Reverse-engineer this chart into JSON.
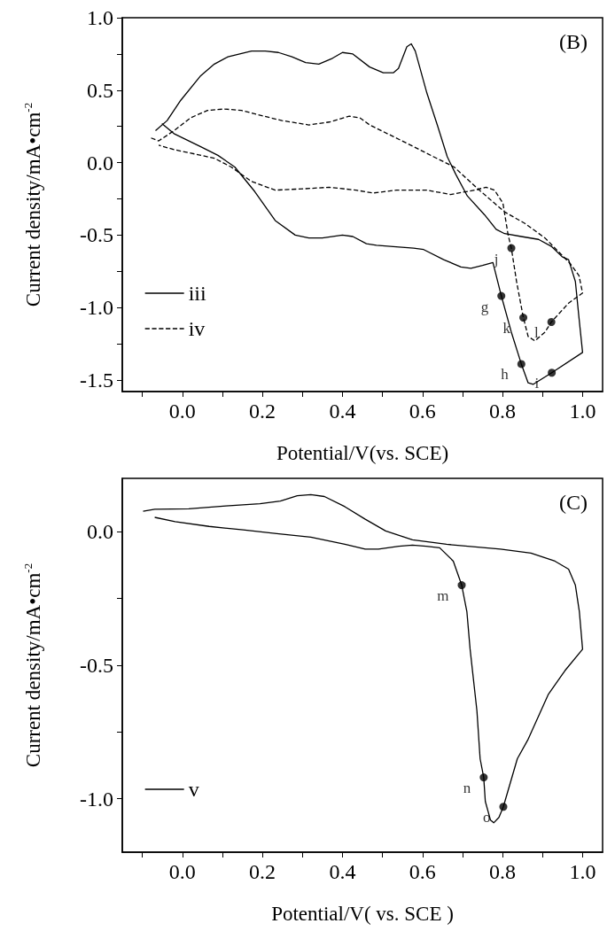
{
  "chart_data": [
    {
      "type": "line",
      "title": "(B)",
      "xlabel": "Potential/V(vs. SCE)",
      "ylabel": "Current density/mA•cm$^{-2}$",
      "xlim": [
        -0.15,
        1.05
      ],
      "ylim": [
        -1.58,
        1.0
      ],
      "xticks": [
        {
          "value": -0.1,
          "label": null
        },
        {
          "value": 0,
          "label": "0.0"
        },
        {
          "value": 0.1,
          "label": null
        },
        {
          "value": 0.2,
          "label": "0.2"
        },
        {
          "value": 0.3,
          "label": null
        },
        {
          "value": 0.4,
          "label": "0.4"
        },
        {
          "value": 0.5,
          "label": null
        },
        {
          "value": 0.6,
          "label": "0.6"
        },
        {
          "value": 0.7,
          "label": null
        },
        {
          "value": 0.8,
          "label": "0.8"
        },
        {
          "value": 0.9,
          "label": null
        },
        {
          "value": 1,
          "label": "1.0"
        }
      ],
      "yticks": [
        {
          "value": -1.5,
          "label": "-1.5"
        },
        {
          "value": -1.25,
          "label": null
        },
        {
          "value": -1,
          "label": "-1.0"
        },
        {
          "value": -0.75,
          "label": null
        },
        {
          "value": -0.5,
          "label": "-0.5"
        },
        {
          "value": -0.25,
          "label": null
        },
        {
          "value": 0,
          "label": "0.0"
        },
        {
          "value": 0.25,
          "label": null
        },
        {
          "value": 0.5,
          "label": "0.5"
        },
        {
          "value": 0.75,
          "label": null
        },
        {
          "value": 1,
          "label": "1.0"
        }
      ],
      "grid": false,
      "legend": "bottom left",
      "marker": "none",
      "series": [
        {
          "name": "iii",
          "color": "#000000",
          "line_style": "solid",
          "x": [
            -0.067,
            -0.038,
            -0.004,
            0.046,
            0.08,
            0.114,
            0.173,
            0.207,
            0.24,
            0.274,
            0.308,
            0.341,
            0.375,
            0.4,
            0.426,
            0.468,
            0.502,
            0.527,
            0.54,
            0.561,
            0.572,
            0.582,
            0.611,
            0.637,
            0.662,
            0.683,
            0.712,
            0.755,
            0.784,
            0.805,
            0.847,
            0.89,
            0.923,
            0.949,
            0.965,
            0.982,
            0.991,
            1.0,
            0.923,
            0.877,
            0.864,
            0.847,
            0.822,
            0.797,
            0.776,
            0.75,
            0.721,
            0.696,
            0.653,
            0.603,
            0.578,
            0.527,
            0.485,
            0.46,
            0.426,
            0.4,
            0.35,
            0.316,
            0.282,
            0.232,
            0.181,
            0.131,
            0.089,
            0.046,
            -0.021,
            -0.051
          ],
          "values": [
            0.22,
            0.29,
            0.43,
            0.6,
            0.68,
            0.73,
            0.77,
            0.77,
            0.76,
            0.73,
            0.69,
            0.68,
            0.72,
            0.76,
            0.75,
            0.66,
            0.62,
            0.62,
            0.65,
            0.8,
            0.82,
            0.77,
            0.48,
            0.26,
            0.04,
            -0.08,
            -0.23,
            -0.36,
            -0.46,
            -0.49,
            -0.51,
            -0.53,
            -0.58,
            -0.65,
            -0.67,
            -0.82,
            -1.07,
            -1.31,
            -1.45,
            -1.53,
            -1.52,
            -1.39,
            -1.17,
            -0.92,
            -0.69,
            -0.71,
            -0.73,
            -0.72,
            -0.67,
            -0.6,
            -0.59,
            -0.58,
            -0.57,
            -0.56,
            -0.51,
            -0.5,
            -0.52,
            -0.52,
            -0.5,
            -0.4,
            -0.2,
            -0.03,
            0.05,
            0.11,
            0.2,
            0.27
          ]
        },
        {
          "name": "iv",
          "color": "#000000",
          "line_style": "dashed",
          "x": [
            -0.078,
            -0.059,
            -0.021,
            0.021,
            0.063,
            0.105,
            0.148,
            0.19,
            0.249,
            0.316,
            0.367,
            0.417,
            0.443,
            0.468,
            0.527,
            0.578,
            0.628,
            0.679,
            0.738,
            0.805,
            0.856,
            0.906,
            0.949,
            0.97,
            0.991,
            1.0,
            0.965,
            0.922,
            0.906,
            0.881,
            0.864,
            0.852,
            0.835,
            0.822,
            0.814,
            0.801,
            0.78,
            0.759,
            0.73,
            0.67,
            0.611,
            0.535,
            0.476,
            0.434,
            0.367,
            0.308,
            0.232,
            0.173,
            0.122,
            0.08,
            0.03,
            -0.021,
            -0.059
          ],
          "values": [
            0.17,
            0.15,
            0.22,
            0.31,
            0.36,
            0.37,
            0.36,
            0.33,
            0.29,
            0.26,
            0.28,
            0.32,
            0.31,
            0.26,
            0.18,
            0.11,
            0.04,
            -0.03,
            -0.18,
            -0.34,
            -0.42,
            -0.52,
            -0.64,
            -0.7,
            -0.78,
            -0.9,
            -0.97,
            -1.1,
            -1.17,
            -1.23,
            -1.2,
            -1.07,
            -0.82,
            -0.59,
            -0.5,
            -0.28,
            -0.19,
            -0.17,
            -0.19,
            -0.22,
            -0.19,
            -0.19,
            -0.21,
            -0.19,
            -0.17,
            -0.18,
            -0.19,
            -0.13,
            -0.03,
            0.03,
            0.06,
            0.09,
            0.12
          ]
        }
      ],
      "annotations": [
        {
          "text": "g",
          "x": 0.797,
          "y": -0.92
        },
        {
          "text": "h",
          "x": 0.847,
          "y": -1.39
        },
        {
          "text": "i",
          "x": 0.923,
          "y": -1.45
        },
        {
          "text": "j",
          "x": 0.822,
          "y": -0.59
        },
        {
          "text": "k",
          "x": 0.852,
          "y": -1.07
        },
        {
          "text": "l",
          "x": 0.922,
          "y": -1.1
        }
      ]
    },
    {
      "type": "line",
      "title": "(C)",
      "xlabel": "Potential/V( vs. SCE )",
      "ylabel": "Current density/mA•cm$^{-2}$",
      "xlim": [
        -0.15,
        1.05
      ],
      "ylim": [
        -1.2,
        0.2
      ],
      "xticks": [
        {
          "value": -0.1,
          "label": null
        },
        {
          "value": 0,
          "label": "0.0"
        },
        {
          "value": 0.1,
          "label": null
        },
        {
          "value": 0.2,
          "label": "0.2"
        },
        {
          "value": 0.3,
          "label": null
        },
        {
          "value": 0.4,
          "label": "0.4"
        },
        {
          "value": 0.5,
          "label": null
        },
        {
          "value": 0.6,
          "label": "0.6"
        },
        {
          "value": 0.7,
          "label": null
        },
        {
          "value": 0.8,
          "label": "0.8"
        },
        {
          "value": 0.9,
          "label": null
        },
        {
          "value": 1,
          "label": "1.0"
        }
      ],
      "yticks": [
        {
          "value": -1,
          "label": "-1.0"
        },
        {
          "value": -0.75,
          "label": null
        },
        {
          "value": -0.5,
          "label": "-0.5"
        },
        {
          "value": -0.25,
          "label": null
        },
        {
          "value": 0,
          "label": "0.0"
        }
      ],
      "grid": false,
      "legend": "bottom left",
      "marker": "none",
      "series": [
        {
          "name": "v",
          "color": "#000000",
          "line_style": "solid",
          "x": [
            -0.098,
            -0.069,
            0.016,
            0.109,
            0.194,
            0.245,
            0.287,
            0.321,
            0.355,
            0.406,
            0.457,
            0.508,
            0.575,
            0.66,
            0.795,
            0.871,
            0.931,
            0.965,
            0.982,
            0.992,
            1.0,
            0.956,
            0.914,
            0.863,
            0.837,
            0.802,
            0.791,
            0.778,
            0.77,
            0.757,
            0.753,
            0.744,
            0.736,
            0.719,
            0.711,
            0.698,
            0.677,
            0.643,
            0.609,
            0.575,
            0.541,
            0.49,
            0.457,
            0.406,
            0.321,
            0.236,
            0.152,
            0.067,
            -0.018,
            -0.069
          ],
          "values": [
            0.077,
            0.084,
            0.086,
            0.097,
            0.105,
            0.115,
            0.135,
            0.139,
            0.132,
            0.094,
            0.047,
            0.003,
            -0.03,
            -0.047,
            -0.065,
            -0.08,
            -0.11,
            -0.14,
            -0.2,
            -0.3,
            -0.44,
            -0.52,
            -0.61,
            -0.78,
            -0.85,
            -1.03,
            -1.07,
            -1.09,
            -1.08,
            -1.01,
            -0.92,
            -0.85,
            -0.67,
            -0.44,
            -0.3,
            -0.2,
            -0.11,
            -0.06,
            -0.054,
            -0.05,
            -0.054,
            -0.065,
            -0.065,
            -0.047,
            -0.02,
            -0.007,
            0.007,
            0.02,
            0.038,
            0.054
          ]
        }
      ],
      "annotations": [
        {
          "text": "m",
          "x": 0.698,
          "y": -0.2
        },
        {
          "text": "n",
          "x": 0.753,
          "y": -0.92
        },
        {
          "text": "o",
          "x": 0.802,
          "y": -1.03
        }
      ]
    }
  ]
}
